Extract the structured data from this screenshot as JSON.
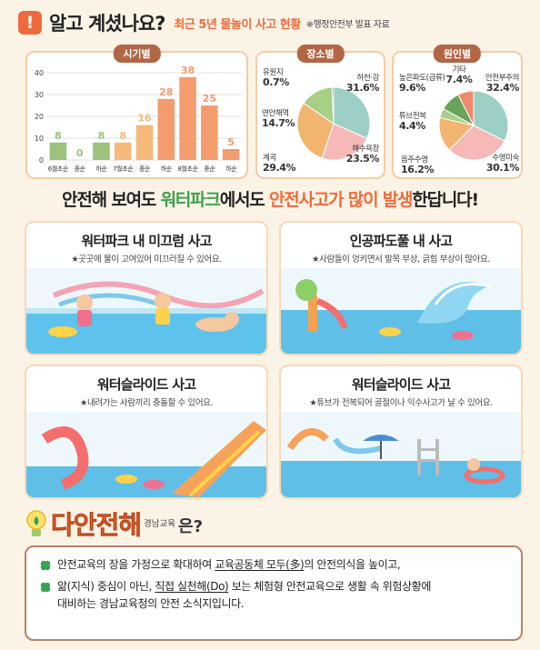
{
  "header": {
    "icon": "exclamation-icon",
    "icon_glyph": "!",
    "title": "알고 계셨나요?",
    "subtitle": "최근 5년 물놀이 사고 현황",
    "note": "※행정안전부 발표 자료"
  },
  "chart_data": [
    {
      "type": "bar",
      "title": "시기별",
      "categories": [
        "6월초순",
        "중순",
        "하순",
        "7월초순",
        "중순",
        "하순",
        "8월초순",
        "중순",
        "하순"
      ],
      "values": [
        8,
        0,
        8,
        8,
        16,
        28,
        38,
        25,
        5
      ],
      "value_labels": [
        "8",
        "0",
        "8",
        "8",
        "16",
        "28",
        "38",
        "25",
        "5"
      ],
      "y_ticks": [
        "40",
        "30",
        "20",
        "10",
        "0"
      ],
      "ylim": [
        0,
        40
      ],
      "grid": true,
      "colors": [
        "#9cc27c",
        "#9cc27c",
        "#9cc27c",
        "#f7b97a",
        "#f7b97a",
        "#f49c6e",
        "#f49c6e",
        "#f49c6e",
        "#f49c6e"
      ]
    },
    {
      "type": "pie",
      "title": "장소별",
      "slices": [
        {
          "label": "하천·강",
          "value": 31.6,
          "text": "31.6%",
          "color": "#9ccfc6"
        },
        {
          "label": "해수욕장",
          "value": 23.5,
          "text": "23.5%",
          "color": "#f7b8b8"
        },
        {
          "label": "계곡",
          "value": 29.4,
          "text": "29.4%",
          "color": "#f2b56f"
        },
        {
          "label": "연안해역",
          "value": 14.7,
          "text": "14.7%",
          "color": "#a7cf86"
        },
        {
          "label": "유원지",
          "value": 0.7,
          "text": "0.7%",
          "color": "#6aa35a"
        }
      ]
    },
    {
      "type": "pie",
      "title": "원인별",
      "slices": [
        {
          "label": "안전부주의",
          "value": 32.4,
          "text": "32.4%",
          "color": "#9ccfc6"
        },
        {
          "label": "수영미숙",
          "value": 30.1,
          "text": "30.1%",
          "color": "#f7b8b8"
        },
        {
          "label": "음주수영",
          "value": 16.2,
          "text": "16.2%",
          "color": "#f2b56f"
        },
        {
          "label": "튜브전복",
          "value": 4.4,
          "text": "4.4%",
          "color": "#a7cf86"
        },
        {
          "label": "높은파도(급류)",
          "value": 9.6,
          "text": "9.6%",
          "color": "#6aa35a"
        },
        {
          "label": "기타",
          "value": 7.4,
          "text": "7.4%",
          "color": "#f08a6e"
        }
      ]
    }
  ],
  "slogan": {
    "p1": "안전해 보여도 ",
    "p2": "워터파크",
    "p3": "에서도 ",
    "p4": "안전사고가 많이 발생",
    "p5": "한답니다!"
  },
  "accidents": [
    {
      "title": "워터파크 내 미끄럼 사고",
      "desc": "★곳곳에 물이 고여있어 미끄러질 수 있어요."
    },
    {
      "title": "인공파도풀 내 사고",
      "desc": "★사람들이 엉키면서 발목 부상, 긁힘 부상이 많아요."
    },
    {
      "title": "워터슬라이드 사고",
      "desc": "★내려가는 사람끼리 충돌할 수 있어요."
    },
    {
      "title": "워터슬라이드 사고",
      "desc": "★튜브가 전복되어 골절이나 익수사고가 날 수 있어요."
    }
  ],
  "intro": {
    "brand": "다안전해",
    "brand_small": "경남교육",
    "suffix": "은?"
  },
  "info": {
    "l1a": "안전교육의 장을 가정으로 확대하여 ",
    "l1b": "교육공동체 모두(多)",
    "l1c": "의 안전의식을 높이고,",
    "l2a": "앎(지식) 중심이 아닌, ",
    "l2b": "직접 실천해(Do)",
    "l2c": " 보는 체험형 안전교육으로 생활 속 위험상황에",
    "l3": "대비하는 경남교육청의 안전 소식지입니다."
  }
}
